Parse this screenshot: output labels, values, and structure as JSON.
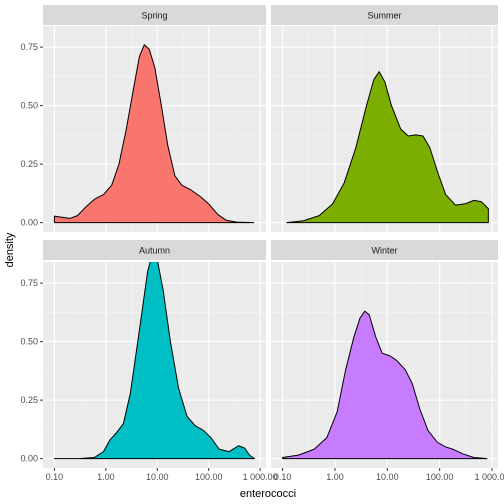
{
  "chart_data": {
    "type": "area",
    "chart_kind": "faceted density plot",
    "xlabel": "enterococci",
    "ylabel": "density",
    "x_scale": "log10",
    "xlim": [
      0.06,
      1300
    ],
    "ylim": [
      -0.04,
      0.84
    ],
    "x_ticks": [
      {
        "value": 0.1,
        "label": "0.10"
      },
      {
        "value": 1,
        "label": "1.00"
      },
      {
        "value": 10,
        "label": "10.00"
      },
      {
        "value": 100,
        "label": "100.00"
      },
      {
        "value": 1000,
        "label": "1 000.00"
      }
    ],
    "y_ticks": [
      {
        "value": 0,
        "label": "0.00"
      },
      {
        "value": 0.25,
        "label": "0.25"
      },
      {
        "value": 0.5,
        "label": "0.50"
      },
      {
        "value": 0.75,
        "label": "0.75"
      }
    ],
    "grid": true,
    "legend": "none",
    "facets": [
      {
        "name": "Spring",
        "color": "#F8766D",
        "points": [
          [
            0.1,
            0.028
          ],
          [
            0.14,
            0.023
          ],
          [
            0.2,
            0.018
          ],
          [
            0.28,
            0.03
          ],
          [
            0.4,
            0.065
          ],
          [
            0.6,
            0.1
          ],
          [
            0.9,
            0.12
          ],
          [
            1.3,
            0.16
          ],
          [
            1.8,
            0.25
          ],
          [
            2.5,
            0.4
          ],
          [
            3.5,
            0.58
          ],
          [
            4.5,
            0.71
          ],
          [
            5.6,
            0.76
          ],
          [
            7,
            0.74
          ],
          [
            9,
            0.66
          ],
          [
            12,
            0.5
          ],
          [
            16,
            0.33
          ],
          [
            22,
            0.2
          ],
          [
            30,
            0.16
          ],
          [
            45,
            0.14
          ],
          [
            70,
            0.11
          ],
          [
            100,
            0.08
          ],
          [
            150,
            0.035
          ],
          [
            220,
            0.01
          ],
          [
            350,
            0.002
          ],
          [
            750,
            0.0
          ]
        ]
      },
      {
        "name": "Summer",
        "color": "#7CAE00",
        "points": [
          [
            0.12,
            0.0
          ],
          [
            0.25,
            0.008
          ],
          [
            0.5,
            0.03
          ],
          [
            0.9,
            0.08
          ],
          [
            1.5,
            0.17
          ],
          [
            2.5,
            0.32
          ],
          [
            4,
            0.5
          ],
          [
            5.5,
            0.61
          ],
          [
            7,
            0.645
          ],
          [
            9,
            0.6
          ],
          [
            12,
            0.5
          ],
          [
            18,
            0.4
          ],
          [
            25,
            0.37
          ],
          [
            35,
            0.375
          ],
          [
            48,
            0.37
          ],
          [
            65,
            0.32
          ],
          [
            90,
            0.22
          ],
          [
            130,
            0.12
          ],
          [
            200,
            0.075
          ],
          [
            300,
            0.08
          ],
          [
            450,
            0.095
          ],
          [
            620,
            0.09
          ],
          [
            850,
            0.06
          ]
        ]
      },
      {
        "name": "Autumn",
        "color": "#00BFC4",
        "points": [
          [
            0.1,
            0.0
          ],
          [
            0.3,
            0.0
          ],
          [
            0.6,
            0.005
          ],
          [
            0.9,
            0.03
          ],
          [
            1.2,
            0.08
          ],
          [
            1.6,
            0.11
          ],
          [
            2.2,
            0.15
          ],
          [
            3,
            0.28
          ],
          [
            4.5,
            0.55
          ],
          [
            6.5,
            0.8
          ],
          [
            8,
            0.875
          ],
          [
            10,
            0.85
          ],
          [
            13,
            0.72
          ],
          [
            18,
            0.5
          ],
          [
            26,
            0.3
          ],
          [
            38,
            0.18
          ],
          [
            55,
            0.14
          ],
          [
            80,
            0.12
          ],
          [
            110,
            0.09
          ],
          [
            160,
            0.04
          ],
          [
            250,
            0.03
          ],
          [
            380,
            0.055
          ],
          [
            500,
            0.045
          ],
          [
            620,
            0.015
          ],
          [
            780,
            0.0
          ]
        ]
      },
      {
        "name": "Winter",
        "color": "#C77CFF",
        "points": [
          [
            0.1,
            0.005
          ],
          [
            0.2,
            0.015
          ],
          [
            0.4,
            0.04
          ],
          [
            0.7,
            0.09
          ],
          [
            1.1,
            0.2
          ],
          [
            1.6,
            0.38
          ],
          [
            2.3,
            0.52
          ],
          [
            3,
            0.6
          ],
          [
            3.7,
            0.63
          ],
          [
            4.5,
            0.615
          ],
          [
            6,
            0.52
          ],
          [
            8,
            0.45
          ],
          [
            11,
            0.44
          ],
          [
            15,
            0.42
          ],
          [
            22,
            0.38
          ],
          [
            30,
            0.32
          ],
          [
            42,
            0.21
          ],
          [
            60,
            0.12
          ],
          [
            90,
            0.07
          ],
          [
            130,
            0.05
          ],
          [
            180,
            0.04
          ],
          [
            280,
            0.02
          ],
          [
            450,
            0.005
          ],
          [
            800,
            0.0
          ]
        ]
      }
    ]
  }
}
